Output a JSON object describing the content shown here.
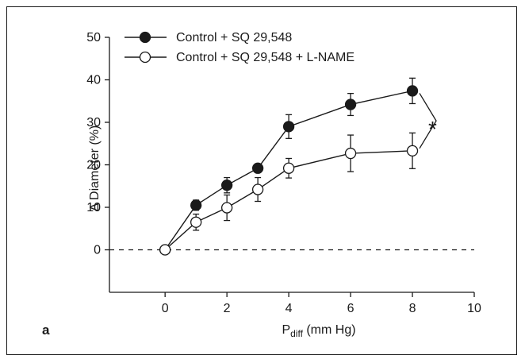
{
  "chart_data": {
    "type": "line",
    "panel_label": "a",
    "xlabel_main": "P",
    "xlabel_sub": "diff",
    "xlabel_unit": " (mm Hg)",
    "ylabel": "Δ Diameter (%)",
    "xlim": [
      -1.8,
      10
    ],
    "ylim": [
      -10,
      50
    ],
    "xticks": [
      0,
      2,
      4,
      6,
      8,
      10
    ],
    "yticks": [
      0,
      10,
      20,
      30,
      40,
      50
    ],
    "grid": false,
    "legend_position": "top-left",
    "zero_line": "dashed",
    "significance_marker": "*",
    "series": [
      {
        "name": "Control + SQ 29,548",
        "marker": "filled-circle",
        "x": [
          0,
          1,
          2,
          3,
          4,
          6,
          8
        ],
        "y": [
          0,
          10.5,
          15.2,
          19.2,
          29.0,
          34.2,
          37.4
        ],
        "err": [
          0,
          1.2,
          1.8,
          0.8,
          2.8,
          2.6,
          3.0
        ]
      },
      {
        "name": "Control + SQ 29,548 + L-NAME",
        "marker": "open-circle",
        "x": [
          0,
          1,
          2,
          3,
          4,
          6,
          8
        ],
        "y": [
          0,
          6.5,
          9.9,
          14.2,
          19.2,
          22.7,
          23.3
        ],
        "err": [
          0,
          1.9,
          3.0,
          2.8,
          2.3,
          4.3,
          4.2
        ]
      }
    ]
  }
}
